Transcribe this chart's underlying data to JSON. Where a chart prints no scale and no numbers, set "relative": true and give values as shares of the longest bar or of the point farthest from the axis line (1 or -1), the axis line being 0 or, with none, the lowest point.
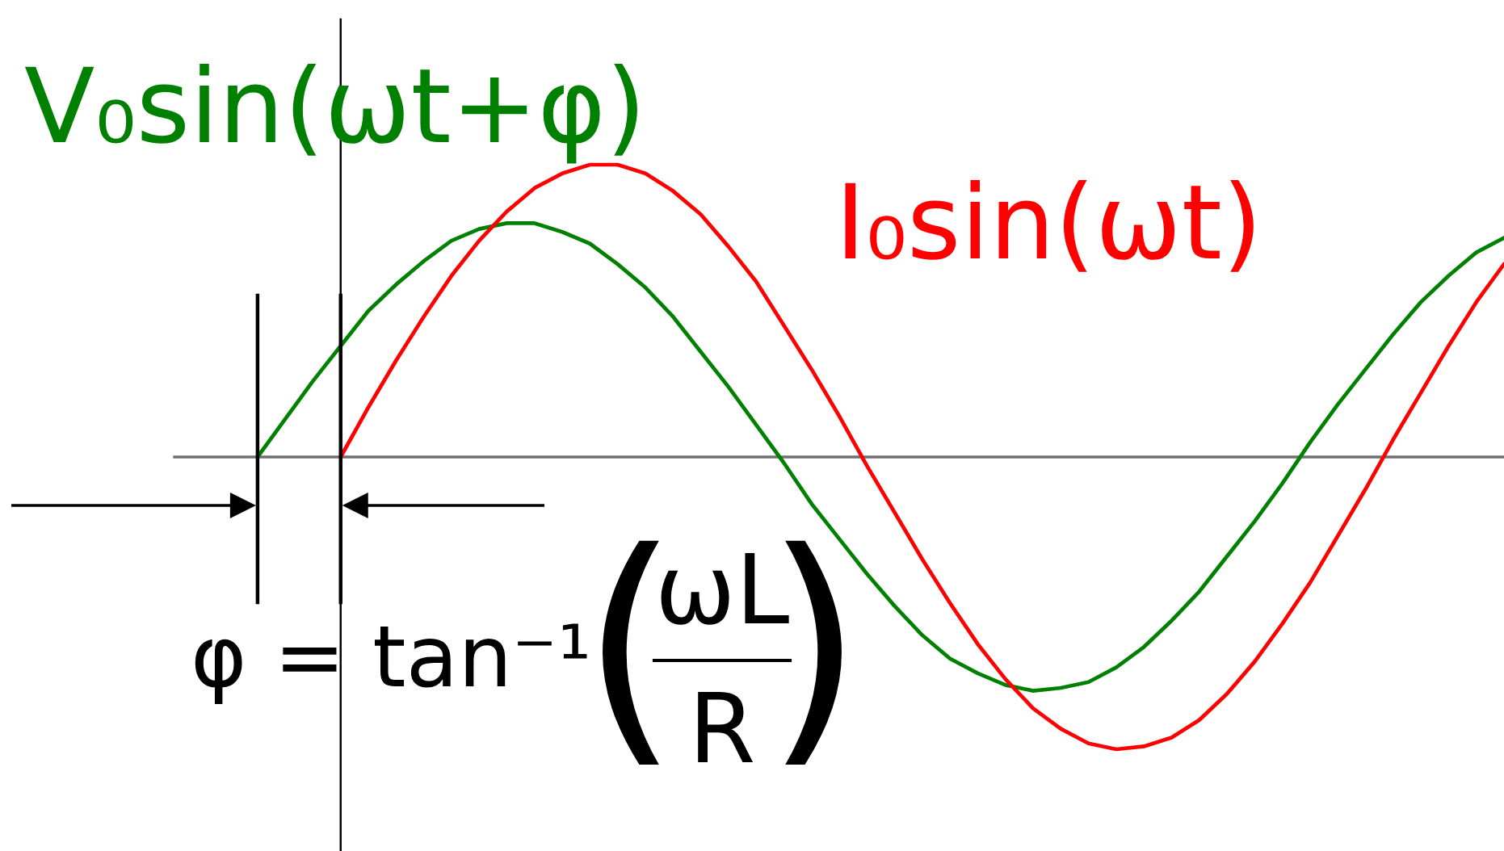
{
  "chart_data": {
    "type": "line",
    "relative": true,
    "categories": [
      null,
      null,
      null,
      null,
      null,
      null,
      null,
      null,
      null,
      null,
      null,
      null,
      null,
      null,
      null,
      null,
      null,
      null,
      null,
      null,
      null,
      null,
      null,
      null,
      null,
      null,
      null,
      null,
      null,
      null,
      null,
      null,
      null,
      null,
      null,
      null,
      null,
      null,
      null,
      null,
      null,
      null,
      null,
      null,
      null,
      null,
      null,
      null,
      null
    ],
    "series": [
      {
        "name": "V₀sin(ωt+φ)",
        "color": "#008000",
        "values": [
          null,
          null,
          null,
          0,
          0.13,
          0.26,
          0.38,
          0.5,
          0.59,
          0.67,
          0.74,
          0.78,
          0.8,
          0.8,
          0.77,
          0.73,
          0.66,
          0.58,
          0.48,
          0.36,
          0.24,
          0.11,
          -0.02,
          -0.16,
          -0.28,
          -0.4,
          -0.51,
          -0.61,
          -0.69,
          -0.74,
          -0.78,
          -0.8,
          -0.79,
          -0.77,
          -0.72,
          -0.65,
          -0.56,
          -0.46,
          -0.34,
          -0.22,
          -0.09,
          0.05,
          0.18,
          0.3,
          0.42,
          0.53,
          0.62,
          0.7,
          0.75
        ]
      },
      {
        "name": "I₀sin(ωt)",
        "color": "#ff0000",
        "values": [
          null,
          null,
          null,
          null,
          null,
          null,
          0,
          0.17,
          0.33,
          0.48,
          0.62,
          0.74,
          0.84,
          0.92,
          0.97,
          1.0,
          1.0,
          0.97,
          0.91,
          0.83,
          0.72,
          0.6,
          0.45,
          0.3,
          0.14,
          -0.03,
          -0.19,
          -0.35,
          -0.5,
          -0.64,
          -0.76,
          -0.86,
          -0.93,
          -0.98,
          -1.0,
          -0.99,
          -0.96,
          -0.9,
          -0.81,
          -0.7,
          -0.57,
          -0.43,
          -0.27,
          -0.11,
          0.06,
          0.22,
          0.38,
          0.53,
          0.66
        ]
      }
    ],
    "annotations": [
      "φ = tan⁻¹",
      "(",
      "ωL",
      "R",
      ")"
    ]
  }
}
